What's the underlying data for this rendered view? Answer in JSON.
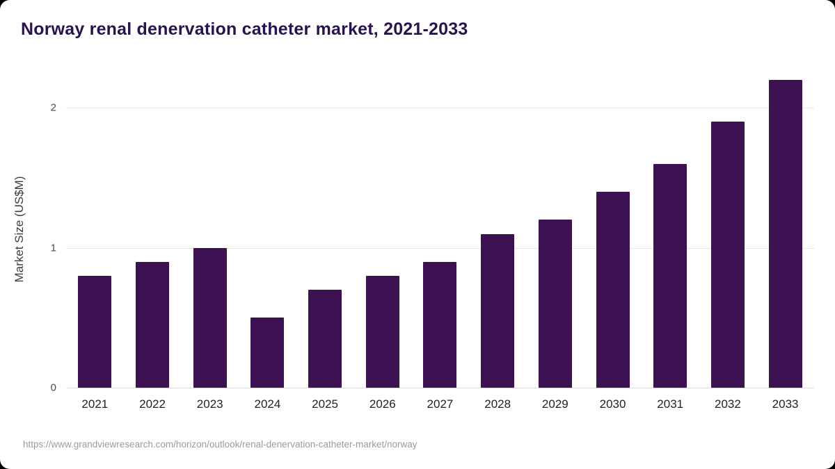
{
  "chart_data": {
    "type": "bar",
    "title": "Norway renal denervation catheter market, 2021-2033",
    "ylabel": "Market Size (US$M)",
    "xlabel": "",
    "categories": [
      "2021",
      "2022",
      "2023",
      "2024",
      "2025",
      "2026",
      "2027",
      "2028",
      "2029",
      "2030",
      "2031",
      "2032",
      "2033"
    ],
    "values": [
      0.8,
      0.9,
      1.0,
      0.5,
      0.7,
      0.8,
      0.9,
      1.1,
      1.2,
      1.4,
      1.6,
      1.9,
      2.2
    ],
    "ylim": [
      0,
      2.25
    ],
    "yticks": [
      0,
      1,
      2
    ],
    "grid": "horizontal",
    "legend_position": "none",
    "bar_color": "#3d1152"
  },
  "source": {
    "url_text": "https://www.grandviewresearch.com/horizon/outlook/renal-denervation-catheter-market/norway"
  },
  "colors": {
    "title": "#2a1150",
    "bar": "#3d1152",
    "gridline": "#e7e7e7",
    "axis_text": "#4a4a4a",
    "background": "#ffffff",
    "outer_background": "#000000"
  }
}
